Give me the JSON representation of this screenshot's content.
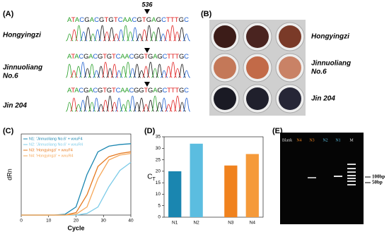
{
  "panel_a": {
    "label": "(A)",
    "marker": "536",
    "rows": [
      {
        "name": [
          "Hongyingzi"
        ],
        "sequence": "ATACGACGTGTCAACGTGAGCTTTGC"
      },
      {
        "name": [
          "Jinnuoliang",
          "No.6"
        ],
        "sequence": "ATACGACGTGTCAACGGTGAGCTTTGC"
      },
      {
        "name": [
          "Jin 204"
        ],
        "sequence": "ATACGACGTGTCAACGGTGAGCTTTGC"
      }
    ]
  },
  "panel_b": {
    "label": "(B)",
    "names": [
      [
        "Hongyingzi"
      ],
      [
        "Jinnuoliang",
        "No.6"
      ],
      [
        "Jin 204"
      ]
    ]
  },
  "chart_data": [
    {
      "type": "line",
      "label": "(C)",
      "xlabel": "Cycle",
      "ylabel": "dRn",
      "x": [
        0,
        4,
        8,
        12,
        16,
        20,
        24,
        28,
        32,
        36,
        40
      ],
      "xlim": [
        0,
        40
      ],
      "xticks": [
        0,
        10,
        20,
        30,
        40
      ],
      "ylim": [
        0,
        1
      ],
      "series": [
        {
          "name": "N1: 'Jinnuoliang No.6' + wxuF4",
          "color": "#1a86b0",
          "values": [
            0,
            0,
            0,
            0,
            0.01,
            0.1,
            0.5,
            0.78,
            0.85,
            0.87,
            0.88
          ]
        },
        {
          "name": "N2: 'Jinnuoliang No.6' + wxuR4",
          "color": "#7ccbe8",
          "values": [
            0,
            0,
            0,
            0,
            0,
            0,
            0.02,
            0.1,
            0.35,
            0.55,
            0.65
          ]
        },
        {
          "name": "N3: 'Hongyingzi' + wxuF4",
          "color": "#e5781e",
          "values": [
            0,
            0,
            0,
            0,
            0,
            0.03,
            0.25,
            0.6,
            0.72,
            0.76,
            0.78
          ]
        },
        {
          "name": "N4: 'Hongyingzi' + wxuR4",
          "color": "#f6a85a",
          "values": [
            0,
            0,
            0,
            0,
            0,
            0.01,
            0.1,
            0.45,
            0.68,
            0.74,
            0.76
          ]
        }
      ]
    },
    {
      "type": "bar",
      "label": "(D)",
      "ylabel": "CT",
      "categories": [
        "N1",
        "N2",
        "N3",
        "N4"
      ],
      "values": [
        20,
        32,
        22.5,
        27.5
      ],
      "colors": [
        "#1a86b0",
        "#5bbde0",
        "#f0821e",
        "#f59a3a"
      ],
      "ylim": [
        0,
        35
      ],
      "yticks": [
        0,
        5,
        10,
        15,
        20,
        25,
        30,
        35
      ]
    }
  ],
  "panel_e": {
    "label": "(E)",
    "lanes": [
      {
        "name": "Blank",
        "color": "#dddddd"
      },
      {
        "name": "N4",
        "color": "#f0821e"
      },
      {
        "name": "N3",
        "color": "#f0821e"
      },
      {
        "name": "N2",
        "color": "#5bbde0"
      },
      {
        "name": "N1",
        "color": "#5bbde0"
      },
      {
        "name": "M",
        "color": "#dddddd"
      }
    ],
    "markers": [
      "100bp",
      "50bp"
    ]
  }
}
